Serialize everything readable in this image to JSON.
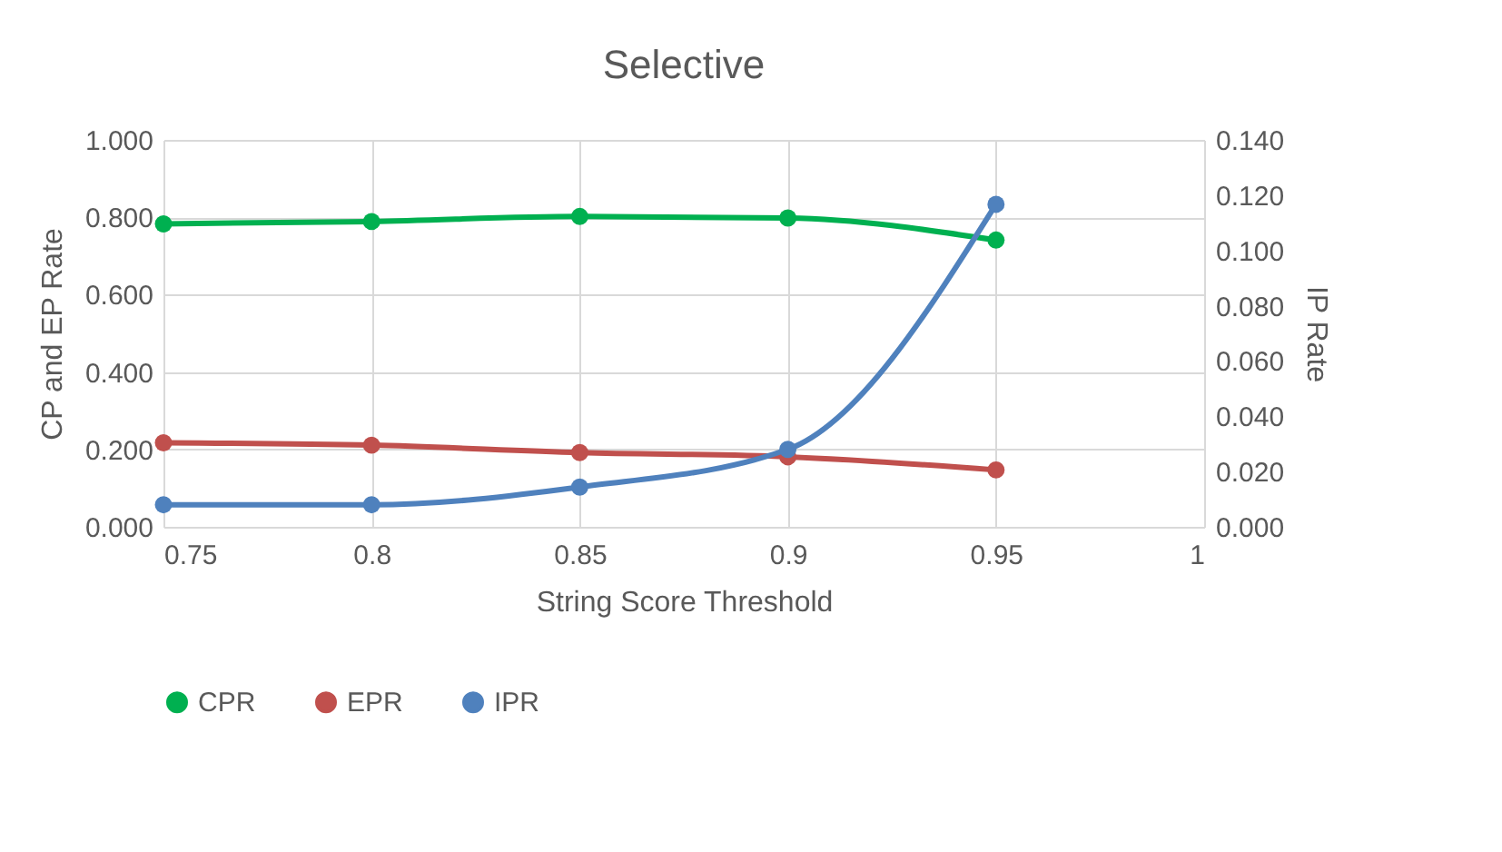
{
  "chart_data": {
    "type": "line",
    "title": "Selective",
    "xlabel": "String Score Threshold",
    "ylabel": "CP and EP Rate",
    "y2label": "IP Rate",
    "x": [
      0.75,
      0.8,
      0.85,
      0.9,
      0.95
    ],
    "xlim": [
      0.75,
      1
    ],
    "xticks": [
      0.75,
      0.8,
      0.85,
      0.9,
      0.95,
      1
    ],
    "ylim": [
      0,
      1
    ],
    "yticks": [
      {
        "value": 0,
        "label": "0.000"
      },
      {
        "value": 0.2,
        "label": "0.200"
      },
      {
        "value": 0.4,
        "label": "0.400"
      },
      {
        "value": 0.6,
        "label": "0.600"
      },
      {
        "value": 0.8,
        "label": "0.800"
      },
      {
        "value": 1,
        "label": "1.000"
      }
    ],
    "y2lim": [
      0,
      0.14
    ],
    "y2ticks": [
      {
        "value": 0,
        "label": "0.000"
      },
      {
        "value": 0.02,
        "label": "0.020"
      },
      {
        "value": 0.04,
        "label": "0.040"
      },
      {
        "value": 0.06,
        "label": "0.060"
      },
      {
        "value": 0.08,
        "label": "0.080"
      },
      {
        "value": 0.1,
        "label": "0.100"
      },
      {
        "value": 0.12,
        "label": "0.120"
      },
      {
        "value": 0.14,
        "label": "0.140"
      }
    ],
    "series": [
      {
        "name": "CPR",
        "color": "#00b050",
        "values": [
          0.783,
          0.789,
          0.802,
          0.798,
          0.741
        ]
      },
      {
        "name": "EPR",
        "color": "#c0504d",
        "values": [
          0.217,
          0.211,
          0.192,
          0.181,
          0.147
        ]
      },
      {
        "name": "IPR",
        "color": "#4f81bd",
        "values": [
          0.008,
          0.008,
          0.0144,
          0.028,
          0.1167
        ],
        "axis": "y2"
      }
    ],
    "grid": true,
    "legend": "bottom",
    "marker": "circle"
  }
}
